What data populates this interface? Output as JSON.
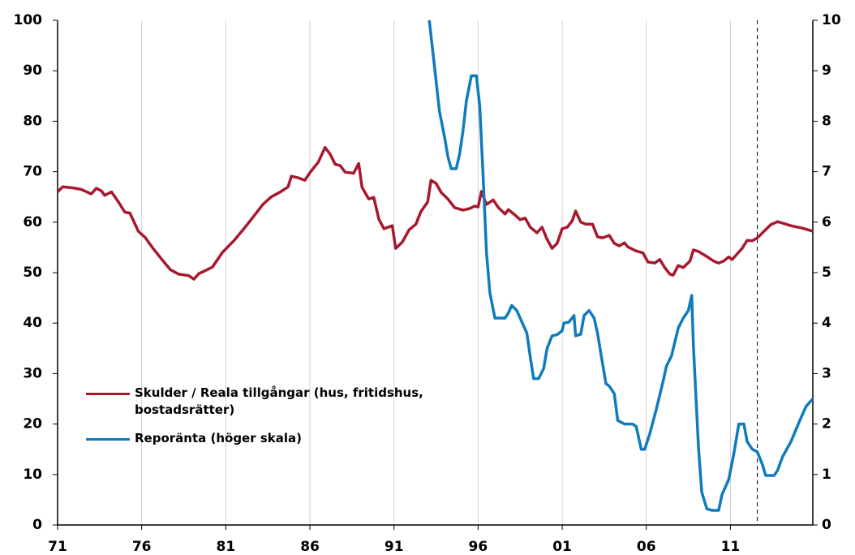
{
  "chart_data": {
    "type": "line",
    "xlim": [
      1971,
      2015.9
    ],
    "xticks": [
      {
        "value": 1971,
        "label": "71"
      },
      {
        "value": 1976,
        "label": "76"
      },
      {
        "value": 1981,
        "label": "81"
      },
      {
        "value": 1986,
        "label": "86"
      },
      {
        "value": 1991,
        "label": "91"
      },
      {
        "value": 1996,
        "label": "96"
      },
      {
        "value": 2001,
        "label": "01"
      },
      {
        "value": 2006,
        "label": "06"
      },
      {
        "value": 2011,
        "label": "11"
      }
    ],
    "ylim": [
      0,
      100
    ],
    "yticks": [
      0,
      10,
      20,
      30,
      40,
      50,
      60,
      70,
      80,
      90,
      100
    ],
    "y2lim": [
      0,
      10
    ],
    "y2ticks": [
      0,
      1,
      2,
      3,
      4,
      5,
      6,
      7,
      8,
      9,
      10
    ],
    "xgrid": true,
    "vline": 2012.6,
    "legend": "center-left",
    "series": [
      {
        "name": "Skulder / Reala tillgångar (hus, fritidshus, bostadsrätter)",
        "color": "#a6192e",
        "x": [
          1971.0,
          1971.3,
          1971.9,
          1972.4,
          1973.0,
          1973.3,
          1973.6,
          1973.8,
          1974.2,
          1974.6,
          1975.0,
          1975.3,
          1975.8,
          1976.2,
          1976.7,
          1977.2,
          1977.7,
          1978.2,
          1978.8,
          1979.1,
          1979.4,
          1979.9,
          1980.2,
          1980.8,
          1981.5,
          1982.0,
          1982.6,
          1983.2,
          1983.7,
          1984.2,
          1984.7,
          1984.9,
          1985.3,
          1985.7,
          1986.0,
          1986.5,
          1986.9,
          1987.2,
          1987.5,
          1987.8,
          1988.1,
          1988.6,
          1988.9,
          1989.1,
          1989.5,
          1989.8,
          1990.1,
          1990.4,
          1990.9,
          1991.1,
          1991.5,
          1991.9,
          1992.3,
          1992.6,
          1993.0,
          1993.2,
          1993.5,
          1993.8,
          1994.2,
          1994.6,
          1995.1,
          1995.5,
          1995.8,
          1996.0,
          1996.2,
          1996.5,
          1996.9,
          1997.2,
          1997.6,
          1997.8,
          1998.2,
          1998.5,
          1998.8,
          1999.1,
          1999.5,
          1999.8,
          2000.1,
          2000.4,
          2000.7,
          2001.0,
          2001.3,
          2001.6,
          2001.8,
          2002.1,
          2002.4,
          2002.8,
          2003.1,
          2003.4,
          2003.8,
          2004.1,
          2004.4,
          2004.7,
          2004.9,
          2005.4,
          2005.8,
          2006.1,
          2006.5,
          2006.8,
          2007.1,
          2007.4,
          2007.6,
          2007.9,
          2008.2,
          2008.6,
          2008.8,
          2009.1,
          2009.5,
          2010.0,
          2010.3,
          2010.6,
          2010.9,
          2011.1,
          2011.4,
          2011.7,
          2012.0,
          2012.3,
          2012.6,
          2013.0,
          2013.4,
          2013.8,
          2014.1,
          2014.6,
          2015.3,
          2015.9
        ],
        "values": [
          66,
          67,
          66.8,
          66.5,
          65.6,
          66.7,
          66.2,
          65.3,
          66,
          64.1,
          62,
          61.8,
          58.2,
          57,
          54.7,
          52.6,
          50.6,
          49.7,
          49.4,
          48.7,
          49.8,
          50.6,
          51.1,
          54,
          56.4,
          58.4,
          60.9,
          63.5,
          65,
          65.9,
          67,
          69.1,
          68.8,
          68.3,
          69.8,
          71.9,
          74.8,
          73.5,
          71.5,
          71.2,
          69.9,
          69.7,
          71.6,
          66.9,
          64.6,
          64.9,
          60.6,
          58.7,
          59.3,
          54.8,
          56.1,
          58.5,
          59.6,
          62.1,
          64,
          68.3,
          67.7,
          65.9,
          64.6,
          62.9,
          62.4,
          62.7,
          63.2,
          63,
          66.1,
          63.5,
          64.4,
          62.9,
          61.6,
          62.5,
          61.4,
          60.5,
          60.8,
          59,
          57.9,
          59,
          56.6,
          54.8,
          55.8,
          58.7,
          59,
          60.3,
          62.2,
          60,
          59.6,
          59.6,
          57.1,
          56.9,
          57.4,
          55.8,
          55.3,
          55.9,
          55.1,
          54.3,
          53.9,
          52.1,
          51.9,
          52.6,
          51,
          49.7,
          49.5,
          51.4,
          51,
          52.3,
          54.5,
          54.2,
          53.4,
          52.3,
          51.9,
          52.3,
          53.1,
          52.6,
          53.7,
          54.8,
          56.4,
          56.3,
          56.9,
          58.2,
          59.5,
          60.1,
          59.8,
          59.3,
          58.8,
          58.2
        ]
      },
      {
        "name": "Reporänta (höger skala)",
        "color": "#0f7bbd",
        "axis": "y2",
        "x": [
          1993.1,
          1993.4,
          1993.7,
          1994.0,
          1994.2,
          1994.4,
          1994.7,
          1994.9,
          1995.1,
          1995.3,
          1995.6,
          1995.9,
          1996.1,
          1996.3,
          1996.5,
          1996.7,
          1997.0,
          1997.6,
          1997.8,
          1998.0,
          1998.3,
          1998.5,
          1998.9,
          1999.1,
          1999.3,
          1999.6,
          1999.9,
          2000.1,
          2000.4,
          2000.7,
          2001.0,
          2001.1,
          2001.4,
          2001.7,
          2001.8,
          2002.1,
          2002.3,
          2002.6,
          2002.9,
          2003.1,
          2003.3,
          2003.6,
          2003.8,
          2004.1,
          2004.3,
          2004.7,
          2005.2,
          2005.4,
          2005.7,
          2005.9,
          2006.2,
          2006.6,
          2007.0,
          2007.2,
          2007.5,
          2007.9,
          2008.2,
          2008.5,
          2008.7,
          2008.8,
          2009.1,
          2009.3,
          2009.6,
          2009.9,
          2010.3,
          2010.5,
          2010.9,
          2011.2,
          2011.5,
          2011.8,
          2012.0,
          2012.3,
          2012.6,
          2012.9,
          2013.1,
          2013.6,
          2013.8,
          2014.1,
          2014.6,
          2015.1,
          2015.5,
          2015.9
        ],
        "values": [
          10,
          9.1,
          8.2,
          7.7,
          7.3,
          7.06,
          7.06,
          7.35,
          7.8,
          8.4,
          8.9,
          8.9,
          8.3,
          6.9,
          5.4,
          4.6,
          4.1,
          4.1,
          4.2,
          4.35,
          4.25,
          4.1,
          3.8,
          3.33,
          2.9,
          2.9,
          3.1,
          3.5,
          3.75,
          3.77,
          3.85,
          4,
          4.02,
          4.15,
          3.75,
          3.78,
          4.15,
          4.25,
          4.1,
          3.8,
          3.4,
          2.8,
          2.75,
          2.6,
          2.07,
          2,
          2,
          1.95,
          1.5,
          1.5,
          1.8,
          2.3,
          2.85,
          3.15,
          3.35,
          3.9,
          4.1,
          4.25,
          4.55,
          3.55,
          1.55,
          0.65,
          0.32,
          0.29,
          0.29,
          0.6,
          0.9,
          1.4,
          2,
          2,
          1.65,
          1.5,
          1.45,
          1.2,
          0.98,
          0.98,
          1.08,
          1.35,
          1.65,
          2.05,
          2.35,
          2.5
        ]
      }
    ]
  }
}
